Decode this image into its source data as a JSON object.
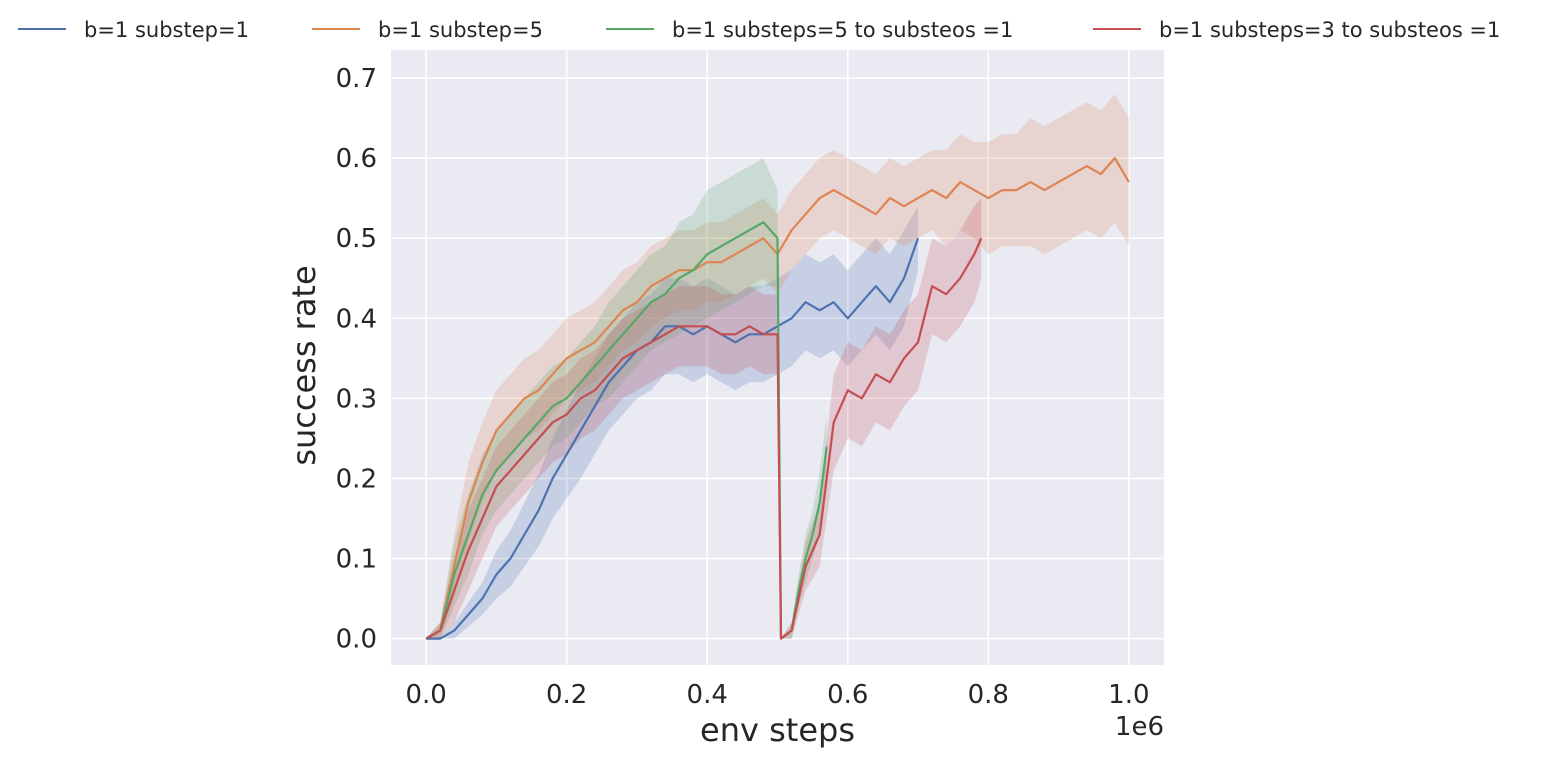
{
  "chart_data": {
    "type": "line",
    "title": "",
    "xlabel": "env steps",
    "ylabel": "success rate",
    "x_offset_label": "1e6",
    "xlim": [
      -0.05,
      1.05
    ],
    "ylim": [
      -0.033,
      0.735
    ],
    "xticks": [
      0.0,
      0.2,
      0.4,
      0.6,
      0.8,
      1.0
    ],
    "xtick_labels": [
      "0.0",
      "0.2",
      "0.4",
      "0.6",
      "0.8",
      "1.0"
    ],
    "yticks": [
      0.0,
      0.1,
      0.2,
      0.3,
      0.4,
      0.5,
      0.6,
      0.7
    ],
    "ytick_labels": [
      "0.0",
      "0.1",
      "0.2",
      "0.3",
      "0.4",
      "0.5",
      "0.6",
      "0.7"
    ],
    "grid": true,
    "legend_position": "top, outside plot, single row",
    "background": "#eaeaf2",
    "series": [
      {
        "name": "b=1 substep=1",
        "color": "#4c72b0",
        "x": [
          0.0,
          0.02,
          0.04,
          0.06,
          0.08,
          0.1,
          0.12,
          0.14,
          0.16,
          0.18,
          0.2,
          0.22,
          0.24,
          0.26,
          0.28,
          0.3,
          0.32,
          0.34,
          0.36,
          0.38,
          0.4,
          0.42,
          0.44,
          0.46,
          0.48,
          0.5,
          0.52,
          0.54,
          0.56,
          0.58,
          0.6,
          0.62,
          0.64,
          0.66,
          0.68,
          0.7
        ],
        "y": [
          0.0,
          0.0,
          0.01,
          0.03,
          0.05,
          0.08,
          0.1,
          0.13,
          0.16,
          0.2,
          0.23,
          0.26,
          0.29,
          0.32,
          0.34,
          0.36,
          0.37,
          0.39,
          0.39,
          0.38,
          0.39,
          0.38,
          0.37,
          0.38,
          0.38,
          0.39,
          0.4,
          0.42,
          0.41,
          0.42,
          0.4,
          0.42,
          0.44,
          0.42,
          0.45,
          0.5
        ],
        "band": [
          0.0,
          0.0,
          0.01,
          0.015,
          0.02,
          0.03,
          0.035,
          0.04,
          0.045,
          0.05,
          0.055,
          0.06,
          0.06,
          0.06,
          0.06,
          0.06,
          0.06,
          0.06,
          0.06,
          0.06,
          0.06,
          0.06,
          0.06,
          0.06,
          0.06,
          0.06,
          0.06,
          0.06,
          0.06,
          0.06,
          0.06,
          0.06,
          0.06,
          0.06,
          0.06,
          0.04
        ]
      },
      {
        "name": "b=1 substep=5",
        "color": "#dd8452",
        "x": [
          0.0,
          0.02,
          0.04,
          0.06,
          0.08,
          0.1,
          0.12,
          0.14,
          0.16,
          0.18,
          0.2,
          0.22,
          0.24,
          0.26,
          0.28,
          0.3,
          0.32,
          0.34,
          0.36,
          0.38,
          0.4,
          0.42,
          0.44,
          0.46,
          0.48,
          0.5,
          0.52,
          0.54,
          0.56,
          0.58,
          0.6,
          0.62,
          0.64,
          0.66,
          0.68,
          0.7,
          0.72,
          0.74,
          0.76,
          0.78,
          0.8,
          0.82,
          0.84,
          0.86,
          0.88,
          0.9,
          0.92,
          0.94,
          0.96,
          0.98,
          1.0
        ],
        "y": [
          0.0,
          0.01,
          0.09,
          0.17,
          0.22,
          0.26,
          0.28,
          0.3,
          0.31,
          0.33,
          0.35,
          0.36,
          0.37,
          0.39,
          0.41,
          0.42,
          0.44,
          0.45,
          0.46,
          0.46,
          0.47,
          0.47,
          0.48,
          0.49,
          0.5,
          0.48,
          0.51,
          0.53,
          0.55,
          0.56,
          0.55,
          0.54,
          0.53,
          0.55,
          0.54,
          0.55,
          0.56,
          0.55,
          0.57,
          0.56,
          0.55,
          0.56,
          0.56,
          0.57,
          0.56,
          0.57,
          0.58,
          0.59,
          0.58,
          0.6,
          0.57
        ],
        "band": [
          0.0,
          0.01,
          0.04,
          0.05,
          0.05,
          0.05,
          0.05,
          0.05,
          0.05,
          0.05,
          0.05,
          0.05,
          0.05,
          0.05,
          0.05,
          0.05,
          0.05,
          0.05,
          0.05,
          0.05,
          0.05,
          0.05,
          0.05,
          0.05,
          0.05,
          0.05,
          0.05,
          0.05,
          0.05,
          0.05,
          0.05,
          0.05,
          0.05,
          0.05,
          0.05,
          0.05,
          0.05,
          0.06,
          0.06,
          0.06,
          0.07,
          0.07,
          0.07,
          0.08,
          0.08,
          0.08,
          0.08,
          0.08,
          0.08,
          0.08,
          0.08
        ]
      },
      {
        "name": "b=1 substeps=5 to substeos =1",
        "color": "#55a868",
        "x": [
          0.0,
          0.02,
          0.04,
          0.06,
          0.08,
          0.1,
          0.12,
          0.14,
          0.16,
          0.18,
          0.2,
          0.22,
          0.24,
          0.26,
          0.28,
          0.3,
          0.32,
          0.34,
          0.36,
          0.38,
          0.4,
          0.42,
          0.44,
          0.46,
          0.48,
          0.5,
          0.505,
          0.52,
          0.53,
          0.54,
          0.55,
          0.56,
          0.57
        ],
        "y": [
          0.0,
          0.01,
          0.08,
          0.13,
          0.18,
          0.21,
          0.23,
          0.25,
          0.27,
          0.29,
          0.3,
          0.32,
          0.34,
          0.36,
          0.38,
          0.4,
          0.42,
          0.43,
          0.45,
          0.46,
          0.48,
          0.49,
          0.5,
          0.51,
          0.52,
          0.5,
          0.0,
          0.01,
          0.06,
          0.1,
          0.13,
          0.17,
          0.24
        ],
        "band": [
          0.0,
          0.01,
          0.04,
          0.05,
          0.05,
          0.05,
          0.05,
          0.05,
          0.05,
          0.05,
          0.05,
          0.05,
          0.05,
          0.06,
          0.06,
          0.06,
          0.06,
          0.06,
          0.07,
          0.07,
          0.08,
          0.08,
          0.08,
          0.08,
          0.08,
          0.06,
          0.0,
          0.01,
          0.02,
          0.03,
          0.03,
          0.04,
          0.04
        ]
      },
      {
        "name": "b=1 substeps=3 to substeos =1",
        "color": "#c44e52",
        "x": [
          0.0,
          0.02,
          0.04,
          0.06,
          0.08,
          0.1,
          0.12,
          0.14,
          0.16,
          0.18,
          0.2,
          0.22,
          0.24,
          0.26,
          0.28,
          0.3,
          0.32,
          0.34,
          0.36,
          0.38,
          0.4,
          0.42,
          0.44,
          0.46,
          0.48,
          0.5,
          0.505,
          0.52,
          0.54,
          0.56,
          0.58,
          0.6,
          0.62,
          0.64,
          0.66,
          0.68,
          0.7,
          0.72,
          0.74,
          0.76,
          0.78,
          0.79
        ],
        "y": [
          0.0,
          0.01,
          0.06,
          0.11,
          0.15,
          0.19,
          0.21,
          0.23,
          0.25,
          0.27,
          0.28,
          0.3,
          0.31,
          0.33,
          0.35,
          0.36,
          0.37,
          0.38,
          0.39,
          0.39,
          0.39,
          0.38,
          0.38,
          0.39,
          0.38,
          0.38,
          0.0,
          0.01,
          0.09,
          0.13,
          0.27,
          0.31,
          0.3,
          0.33,
          0.32,
          0.35,
          0.37,
          0.44,
          0.43,
          0.45,
          0.48,
          0.5
        ],
        "band": [
          0.0,
          0.01,
          0.04,
          0.05,
          0.05,
          0.05,
          0.05,
          0.05,
          0.05,
          0.05,
          0.05,
          0.05,
          0.05,
          0.05,
          0.05,
          0.05,
          0.05,
          0.05,
          0.05,
          0.05,
          0.05,
          0.05,
          0.05,
          0.05,
          0.05,
          0.05,
          0.0,
          0.01,
          0.03,
          0.04,
          0.06,
          0.06,
          0.06,
          0.06,
          0.06,
          0.06,
          0.06,
          0.06,
          0.06,
          0.06,
          0.06,
          0.05
        ]
      }
    ]
  }
}
